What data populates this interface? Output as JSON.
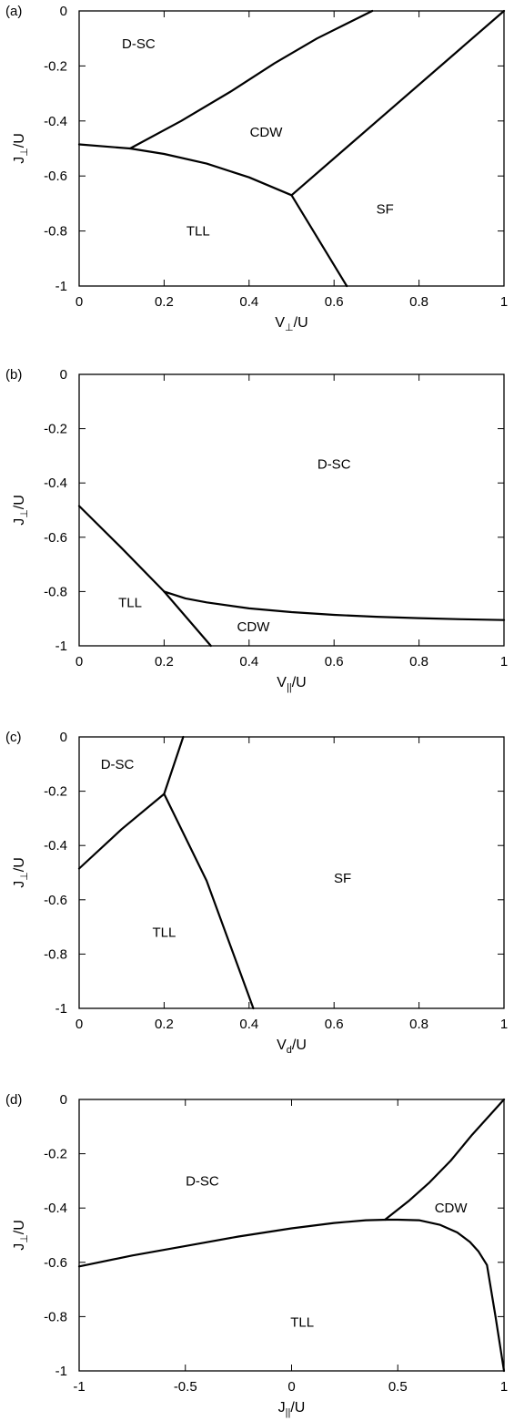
{
  "chart_data": [
    {
      "type": "line",
      "panel_label": "(a)",
      "xlabel": {
        "main": "V",
        "sub": "⊥",
        "tail": "/U"
      },
      "ylabel": {
        "main": "J",
        "sub": "⊥",
        "tail": "/U"
      },
      "xlim": [
        0,
        1
      ],
      "ylim": [
        -1,
        0
      ],
      "xticks": [
        0,
        0.2,
        0.4,
        0.6,
        0.8,
        1
      ],
      "xtick_labels": [
        "0",
        "0.2",
        "0.4",
        "0.6",
        "0.8",
        "1"
      ],
      "yticks": [
        0,
        -0.2,
        -0.4,
        -0.6,
        -0.8,
        -1
      ],
      "ytick_labels": [
        "0",
        "-0.2",
        "-0.4",
        "-0.6",
        "-0.8",
        "-1"
      ],
      "series": [
        {
          "x": [
            0,
            0.12,
            0.2,
            0.3,
            0.4,
            0.5
          ],
          "y": [
            -0.485,
            -0.5,
            -0.52,
            -0.555,
            -0.605,
            -0.67
          ]
        },
        {
          "x": [
            0.12,
            0.24,
            0.36,
            0.46,
            0.56,
            0.69
          ],
          "y": [
            -0.5,
            -0.4,
            -0.29,
            -0.19,
            -0.1,
            0
          ]
        },
        {
          "x": [
            0.5,
            1
          ],
          "y": [
            -0.67,
            0
          ]
        },
        {
          "x": [
            0.5,
            0.63
          ],
          "y": [
            -0.67,
            -1
          ]
        }
      ],
      "regions": [
        {
          "label": "D-SC",
          "x": 0.14,
          "y": -0.12
        },
        {
          "label": "CDW",
          "x": 0.44,
          "y": -0.44
        },
        {
          "label": "SF",
          "x": 0.72,
          "y": -0.72
        },
        {
          "label": "TLL",
          "x": 0.28,
          "y": -0.8
        }
      ]
    },
    {
      "type": "line",
      "panel_label": "(b)",
      "xlabel": {
        "main": "V",
        "sub": "||",
        "tail": "/U"
      },
      "ylabel": {
        "main": "J",
        "sub": "⊥",
        "tail": "/U"
      },
      "xlim": [
        0,
        1
      ],
      "ylim": [
        -1,
        0
      ],
      "xticks": [
        0,
        0.2,
        0.4,
        0.6,
        0.8,
        1
      ],
      "xtick_labels": [
        "0",
        "0.2",
        "0.4",
        "0.6",
        "0.8",
        "1"
      ],
      "yticks": [
        0,
        -0.2,
        -0.4,
        -0.6,
        -0.8,
        -1
      ],
      "ytick_labels": [
        "0",
        "-0.2",
        "-0.4",
        "-0.6",
        "-0.8",
        "-1"
      ],
      "series": [
        {
          "x": [
            0,
            0.1,
            0.2
          ],
          "y": [
            -0.485,
            -0.64,
            -0.8
          ]
        },
        {
          "x": [
            0.2,
            0.31
          ],
          "y": [
            -0.8,
            -1
          ]
        },
        {
          "x": [
            0.2,
            0.25,
            0.3,
            0.4,
            0.5,
            0.6,
            0.7,
            0.8,
            0.9,
            1
          ],
          "y": [
            -0.8,
            -0.825,
            -0.84,
            -0.862,
            -0.876,
            -0.886,
            -0.893,
            -0.898,
            -0.902,
            -0.905
          ]
        }
      ],
      "regions": [
        {
          "label": "D-SC",
          "x": 0.6,
          "y": -0.33
        },
        {
          "label": "TLL",
          "x": 0.12,
          "y": -0.84
        },
        {
          "label": "CDW",
          "x": 0.41,
          "y": -0.93
        }
      ]
    },
    {
      "type": "line",
      "panel_label": "(c)",
      "xlabel": {
        "main": "V",
        "sub": "d",
        "tail": "/U"
      },
      "ylabel": {
        "main": "J",
        "sub": "⊥",
        "tail": "/U"
      },
      "xlim": [
        0,
        1
      ],
      "ylim": [
        -1,
        0
      ],
      "xticks": [
        0,
        0.2,
        0.4,
        0.6,
        0.8,
        1
      ],
      "xtick_labels": [
        "0",
        "0.2",
        "0.4",
        "0.6",
        "0.8",
        "1"
      ],
      "yticks": [
        0,
        -0.2,
        -0.4,
        -0.6,
        -0.8,
        -1
      ],
      "ytick_labels": [
        "0",
        "-0.2",
        "-0.4",
        "-0.6",
        "-0.8",
        "-1"
      ],
      "series": [
        {
          "x": [
            0,
            0.1,
            0.2
          ],
          "y": [
            -0.485,
            -0.34,
            -0.21
          ]
        },
        {
          "x": [
            0.2,
            0.245
          ],
          "y": [
            -0.21,
            0
          ]
        },
        {
          "x": [
            0.2,
            0.3,
            0.41
          ],
          "y": [
            -0.21,
            -0.53,
            -1
          ]
        }
      ],
      "regions": [
        {
          "label": "D-SC",
          "x": 0.09,
          "y": -0.1
        },
        {
          "label": "SF",
          "x": 0.62,
          "y": -0.52
        },
        {
          "label": "TLL",
          "x": 0.2,
          "y": -0.72
        }
      ]
    },
    {
      "type": "line",
      "panel_label": "(d)",
      "xlabel": {
        "main": "J",
        "sub": "||",
        "tail": "/U"
      },
      "ylabel": {
        "main": "J",
        "sub": "⊥",
        "tail": "/U"
      },
      "xlim": [
        -1,
        1
      ],
      "ylim": [
        -1,
        0
      ],
      "xticks": [
        -1,
        -0.5,
        0,
        0.5,
        1
      ],
      "xtick_labels": [
        "-1",
        "-0.5",
        "0",
        "0.5",
        "1"
      ],
      "yticks": [
        0,
        -0.2,
        -0.4,
        -0.6,
        -0.8,
        -1
      ],
      "ytick_labels": [
        "0",
        "-0.2",
        "-0.4",
        "-0.6",
        "-0.8",
        "-1"
      ],
      "series": [
        {
          "x": [
            -1,
            -0.75,
            -0.5,
            -0.25,
            0,
            0.2,
            0.35,
            0.45,
            0.5,
            0.6,
            0.7,
            0.78,
            0.84,
            0.88,
            0.92,
            0.96,
            1
          ],
          "y": [
            -0.615,
            -0.575,
            -0.54,
            -0.505,
            -0.475,
            -0.455,
            -0.445,
            -0.443,
            -0.443,
            -0.445,
            -0.462,
            -0.49,
            -0.525,
            -0.56,
            -0.61,
            -0.8,
            -1
          ]
        },
        {
          "x": [
            0.44,
            0.55,
            0.65,
            0.75,
            0.85,
            1
          ],
          "y": [
            -0.443,
            -0.375,
            -0.305,
            -0.225,
            -0.13,
            0
          ]
        }
      ],
      "regions": [
        {
          "label": "D-SC",
          "x": -0.42,
          "y": -0.3
        },
        {
          "label": "CDW",
          "x": 0.75,
          "y": -0.4
        },
        {
          "label": "TLL",
          "x": 0.05,
          "y": -0.82
        }
      ]
    }
  ]
}
